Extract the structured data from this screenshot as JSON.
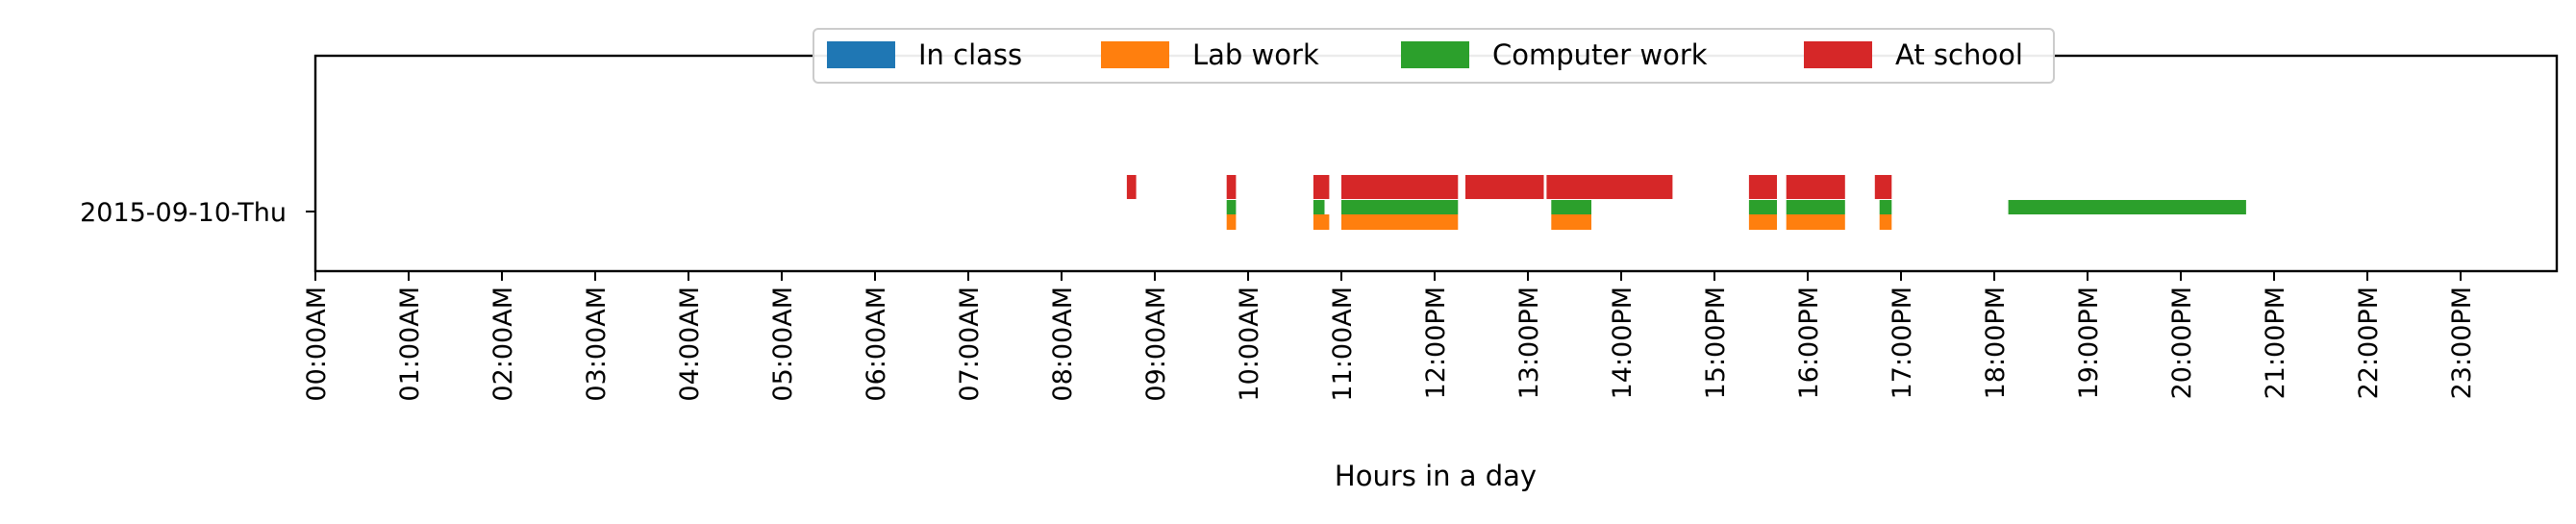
{
  "chart_data": {
    "type": "timeline",
    "xlabel": "Hours in a day",
    "xlim": [
      0,
      24
    ],
    "categories": [
      "2015-09-10-Thu"
    ],
    "tick_labels": [
      "00:00AM",
      "01:00AM",
      "02:00AM",
      "03:00AM",
      "04:00AM",
      "05:00AM",
      "06:00AM",
      "07:00AM",
      "08:00AM",
      "09:00AM",
      "10:00AM",
      "11:00AM",
      "12:00PM",
      "13:00PM",
      "14:00PM",
      "15:00PM",
      "16:00PM",
      "17:00PM",
      "18:00PM",
      "19:00PM",
      "20:00PM",
      "21:00PM",
      "22:00PM",
      "23:00PM"
    ],
    "legend": {
      "placement": "top-center",
      "entries": [
        "In class",
        "Lab work",
        "Computer work",
        "At school"
      ]
    },
    "series": [
      {
        "name": "In class",
        "color": "#1f77b4",
        "intervals": []
      },
      {
        "name": "Lab work",
        "color": "#ff7f0e",
        "intervals": [
          [
            9.77,
            9.87
          ],
          [
            10.7,
            10.87
          ],
          [
            11.0,
            12.25
          ],
          [
            13.25,
            13.68
          ],
          [
            15.37,
            15.67
          ],
          [
            15.77,
            16.4
          ],
          [
            16.77,
            16.9
          ]
        ]
      },
      {
        "name": "Computer work",
        "color": "#2ca02c",
        "intervals": [
          [
            9.77,
            9.87
          ],
          [
            10.7,
            10.82
          ],
          [
            11.0,
            12.25
          ],
          [
            13.25,
            13.68
          ],
          [
            15.37,
            15.67
          ],
          [
            15.77,
            16.4
          ],
          [
            16.77,
            16.9
          ],
          [
            18.15,
            20.7
          ]
        ]
      },
      {
        "name": "At school",
        "color": "#d62728",
        "intervals": [
          [
            8.7,
            8.8
          ],
          [
            9.77,
            9.87
          ],
          [
            10.7,
            10.87
          ],
          [
            11.0,
            12.25
          ],
          [
            12.33,
            13.17
          ],
          [
            13.2,
            14.55
          ],
          [
            15.37,
            15.67
          ],
          [
            15.77,
            16.4
          ],
          [
            16.72,
            16.9
          ]
        ]
      }
    ]
  }
}
